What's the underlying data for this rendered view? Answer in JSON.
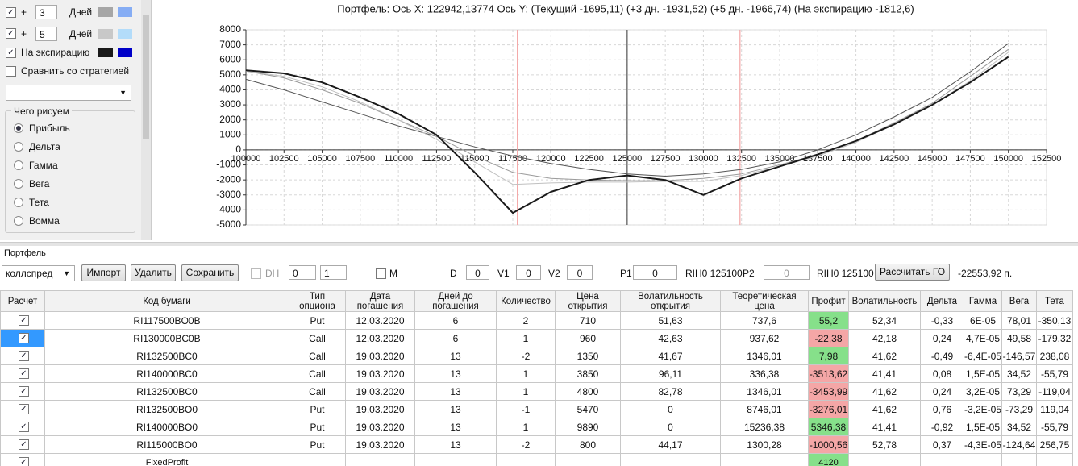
{
  "panel": {
    "rows": [
      {
        "checked": true,
        "plus": "+",
        "days": 3,
        "unit": "Дней",
        "colors": [
          "#a6a6a6",
          "#86adf4"
        ]
      },
      {
        "checked": true,
        "plus": "+",
        "days": 5,
        "unit": "Дней",
        "colors": [
          "#c8c8c8",
          "#b3dcfa"
        ]
      }
    ],
    "expiry": {
      "checked": true,
      "label": "На экспирацию",
      "colors": [
        "#1a1a1a",
        "#0000c8"
      ]
    },
    "compare": {
      "checked": false,
      "label": "Сравнить со стратегией"
    },
    "group_title": "Чего рисуем",
    "radios": [
      "Прибыль",
      "Дельта",
      "Гамма",
      "Вега",
      "Тета",
      "Вомма"
    ],
    "selected": 0
  },
  "chart_data": {
    "type": "line",
    "title": "Портфель:  Ось X:  122942,13774  Ось Y:   (Текущий -1695,11)   (+3 дн. -1931,52)   (+5 дн. -1966,74)   (На экспирацию -1812,6)",
    "x": [
      100000,
      102500,
      105000,
      107500,
      110000,
      112500,
      115000,
      117500,
      120000,
      122500,
      125000,
      127500,
      130000,
      132500,
      135000,
      137500,
      140000,
      142500,
      145000,
      147500,
      150000
    ],
    "series": [
      {
        "color": "#555555",
        "width": 1,
        "values": [
          4700,
          4000,
          3200,
          2400,
          1600,
          900,
          200,
          -400,
          -900,
          -1300,
          -1600,
          -1750,
          -1600,
          -1300,
          -800,
          0,
          1000,
          2200,
          3500,
          5200,
          7100
        ]
      },
      {
        "color": "#9a9a9a",
        "width": 1,
        "values": [
          5250,
          4800,
          4000,
          3100,
          2000,
          900,
          -400,
          -1500,
          -1900,
          -2000,
          -2050,
          -2050,
          -1900,
          -1600,
          -1000,
          -300,
          600,
          1800,
          3100,
          4900,
          6700
        ]
      },
      {
        "color": "#c0c0c0",
        "width": 1,
        "values": [
          5250,
          4900,
          4200,
          3200,
          2000,
          700,
          -800,
          -2300,
          -2200,
          -2150,
          -2150,
          -2100,
          -2100,
          -1700,
          -1100,
          -400,
          500,
          1700,
          3000,
          4600,
          6500
        ]
      },
      {
        "color": "#1a1a1a",
        "width": 2,
        "values": [
          5300,
          5100,
          4500,
          3500,
          2400,
          1000,
          -1500,
          -4200,
          -2800,
          -2000,
          -1700,
          -2000,
          -3000,
          -1900,
          -1100,
          -300,
          600,
          1700,
          3000,
          4500,
          6200
        ]
      }
    ],
    "vlines": [
      {
        "x": 117800,
        "color": "#f4a4a4"
      },
      {
        "x": 125000,
        "color": "#555555"
      },
      {
        "x": 132400,
        "color": "#f4a4a4"
      }
    ],
    "xlim": [
      100000,
      152500
    ],
    "xticks": [
      100000,
      102500,
      105000,
      107500,
      110000,
      112500,
      115000,
      117500,
      120000,
      122500,
      125000,
      127500,
      130000,
      132500,
      135000,
      137500,
      140000,
      142500,
      145000,
      147500,
      150000,
      152500
    ],
    "ylim": [
      -5000,
      8000
    ],
    "yticks": [
      -5000,
      -4000,
      -3000,
      -2000,
      -1000,
      0,
      1000,
      2000,
      3000,
      4000,
      5000,
      6000,
      7000,
      8000
    ],
    "grid": true
  },
  "toolbar": {
    "section": "Портфель",
    "strategy": "коллспред",
    "buttons": [
      "Импорт",
      "Удалить",
      "Сохранить"
    ],
    "dh": "DH",
    "spin1": 0,
    "spin2": 1,
    "m": "M",
    "d_label": "D",
    "d": 0,
    "v1_label": "V1",
    "v1": 0,
    "v2_label": "V2",
    "v2": 0,
    "p1_label": "P1",
    "p1": 0,
    "p1_ticker": "RIH0 125100",
    "p2_label": "P2",
    "p2": 0,
    "p2_ticker": "RIH0 125100",
    "calc": "Рассчитать ГО",
    "margin": "-22553,92 п."
  },
  "table": {
    "headers": [
      "Расчет",
      "Код бумаги",
      "Тип\nопциона",
      "Дата\nпогашения",
      "Дней до\nпогашения",
      "Количество",
      "Цена\nоткрытия",
      "Волатильность\nоткрытия",
      "Теоретическая\nцена",
      "Профит",
      "Волатильность",
      "Дельта",
      "Гамма",
      "Вега",
      "Тета"
    ],
    "selected_row": 1,
    "rows": [
      {
        "checked": true,
        "cells": [
          "RI117500BO0B",
          "Put",
          "12.03.2020",
          "6",
          "2",
          "710",
          "51,63",
          "737,6",
          "55,2",
          "52,34",
          "-0,33",
          "6E-05",
          "78,01",
          "-350,13"
        ]
      },
      {
        "checked": true,
        "cells": [
          "RI130000BC0B",
          "Call",
          "12.03.2020",
          "6",
          "1",
          "960",
          "42,63",
          "937,62",
          "-22,38",
          "42,18",
          "0,24",
          "4,7E-05",
          "49,58",
          "-179,32"
        ]
      },
      {
        "checked": true,
        "cells": [
          "RI132500BC0",
          "Call",
          "19.03.2020",
          "13",
          "-2",
          "1350",
          "41,67",
          "1346,01",
          "7,98",
          "41,62",
          "-0,49",
          "-6,4E-05",
          "-146,57",
          "238,08"
        ]
      },
      {
        "checked": true,
        "cells": [
          "RI140000BC0",
          "Call",
          "19.03.2020",
          "13",
          "1",
          "3850",
          "96,11",
          "336,38",
          "-3513,62",
          "41,41",
          "0,08",
          "1,5E-05",
          "34,52",
          "-55,79"
        ]
      },
      {
        "checked": true,
        "cells": [
          "RI132500BC0",
          "Call",
          "19.03.2020",
          "13",
          "1",
          "4800",
          "82,78",
          "1346,01",
          "-3453,99",
          "41,62",
          "0,24",
          "3,2E-05",
          "73,29",
          "-119,04"
        ]
      },
      {
        "checked": true,
        "cells": [
          "RI132500BO0",
          "Put",
          "19.03.2020",
          "13",
          "-1",
          "5470",
          "0",
          "8746,01",
          "-3276,01",
          "41,62",
          "0,76",
          "-3,2E-05",
          "-73,29",
          "119,04"
        ]
      },
      {
        "checked": true,
        "cells": [
          "RI140000BO0",
          "Put",
          "19.03.2020",
          "13",
          "1",
          "9890",
          "0",
          "15236,38",
          "5346,38",
          "41,41",
          "-0,92",
          "1,5E-05",
          "34,52",
          "-55,79"
        ]
      },
      {
        "checked": true,
        "cells": [
          "RI115000BO0",
          "Put",
          "19.03.2020",
          "13",
          "-2",
          "800",
          "44,17",
          "1300,28",
          "-1000,56",
          "52,78",
          "0,37",
          "-4,3E-05",
          "-124,64",
          "256,75"
        ]
      },
      {
        "checked": true,
        "cells": [
          "FixedProfit",
          null,
          null,
          null,
          null,
          null,
          null,
          null,
          "4120",
          null,
          null,
          null,
          null,
          null
        ]
      }
    ]
  }
}
